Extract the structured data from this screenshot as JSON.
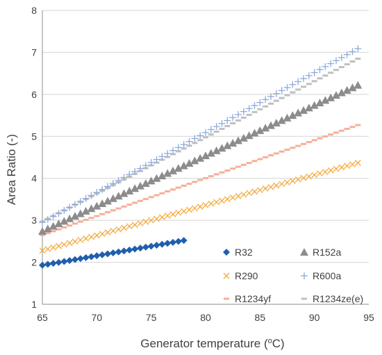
{
  "chart_data": {
    "type": "scatter",
    "xlabel": "Generator temperature (oC)",
    "xlabel_main": "Generator temperature (",
    "xlabel_sup": "o",
    "xlabel_end": "C)",
    "ylabel": "Area Ratio  (-)",
    "xlim": [
      65,
      95
    ],
    "ylim": [
      1,
      8
    ],
    "x_ticks": [
      "65",
      "70",
      "75",
      "80",
      "85",
      "90",
      "95"
    ],
    "y_ticks": [
      "1",
      "2",
      "3",
      "4",
      "5",
      "6",
      "7",
      "8"
    ],
    "grid": "horizontal",
    "legend_position": "lower-right inside plot, 2 columns",
    "series": [
      {
        "name": "R32",
        "marker": "diamond",
        "color": "#1F5FAD",
        "x_start": 65,
        "x_end": 78,
        "x_step": 0.5,
        "y_start": 1.93,
        "y_end": 2.52
      },
      {
        "name": "R152a",
        "marker": "triangle",
        "color": "#8C8C8C",
        "x_start": 65,
        "x_end": 94,
        "x_step": 0.5,
        "y_start": 2.74,
        "y_end": 6.22
      },
      {
        "name": "R290",
        "marker": "x",
        "color": "#F2A93B",
        "x_start": 65,
        "x_end": 94,
        "x_step": 0.5,
        "y_start": 2.28,
        "y_end": 4.37
      },
      {
        "name": "R600a",
        "marker": "plus",
        "color": "#8EAADB",
        "x_start": 65,
        "x_end": 94,
        "x_step": 0.5,
        "y_start": 2.95,
        "y_end": 7.09
      },
      {
        "name": "R1234yf",
        "marker": "dash",
        "color": "#F4B09A",
        "x_start": 65,
        "x_end": 94,
        "x_step": 0.5,
        "y_start": 2.65,
        "y_end": 5.27
      },
      {
        "name": "R1234ze(e)",
        "marker": "dash",
        "color": "#BFBFBF",
        "x_start": 65,
        "x_end": 94,
        "x_step": 0.5,
        "y_start": 2.97,
        "y_end": 6.85
      }
    ]
  }
}
